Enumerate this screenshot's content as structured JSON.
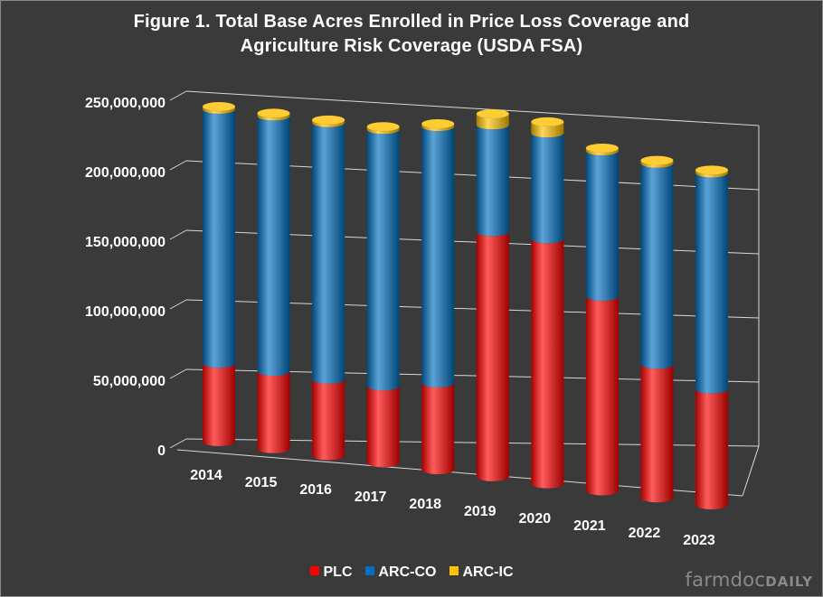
{
  "title_line1": "Figure  1. Total Base Acres Enrolled in Price Loss Coverage and",
  "title_line2": "Agriculture  Risk Coverage (USDA FSA)",
  "brand": {
    "prefix": "farmdoc",
    "suffix": "DAILY"
  },
  "colors": {
    "background": "#3a3a3a",
    "text": "#ffffff",
    "PLC": "#ff0000",
    "ARC-CO": "#0070c0",
    "ARC-IC": "#ffc000",
    "gridline": "#d9d9d9"
  },
  "chart_data": {
    "type": "bar",
    "stacked": true,
    "style": "3d-cylinder",
    "title": "Figure  1. Total Base Acres Enrolled in Price Loss Coverage and Agriculture  Risk Coverage (USDA FSA)",
    "xlabel": "",
    "ylabel": "",
    "ylim": [
      0,
      250000000
    ],
    "yticks": [
      0,
      50000000,
      100000000,
      150000000,
      200000000,
      250000000
    ],
    "ytick_labels": [
      "0",
      "50,000,000",
      "100,000,000",
      "150,000,000",
      "200,000,000",
      "250,000,000"
    ],
    "grid": true,
    "legend_position": "bottom",
    "categories": [
      "2014",
      "2015",
      "2016",
      "2017",
      "2018",
      "2019",
      "2020",
      "2021",
      "2022",
      "2023"
    ],
    "series": [
      {
        "name": "PLC",
        "color": "#ff0000",
        "values": [
          58000000,
          57000000,
          56000000,
          56000000,
          63000000,
          177000000,
          176000000,
          139000000,
          95000000,
          82000000
        ]
      },
      {
        "name": "ARC-CO",
        "color": "#0070c0",
        "values": [
          188000000,
          188000000,
          188000000,
          187000000,
          186000000,
          77000000,
          76000000,
          104000000,
          143000000,
          153000000
        ]
      },
      {
        "name": "ARC-IC",
        "color": "#ffc000",
        "values": [
          2000000,
          2000000,
          2000000,
          2000000,
          2000000,
          8000000,
          8000000,
          2000000,
          2000000,
          2000000
        ]
      }
    ]
  }
}
